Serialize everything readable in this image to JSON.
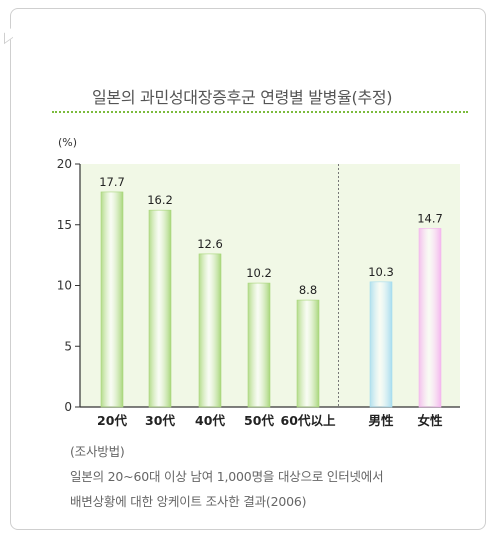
{
  "title": "일본의 과민성대장증후군 연령별 발병율(추정)",
  "chart_data": {
    "type": "bar",
    "ylabel": "(%)",
    "ylim": [
      0,
      20
    ],
    "yticks": [
      0,
      5,
      10,
      15,
      20
    ],
    "grid": false,
    "categories": [
      "20代",
      "30代",
      "40代",
      "50代",
      "60代以上",
      "男性",
      "女性"
    ],
    "values": [
      17.7,
      16.2,
      12.6,
      10.2,
      8.8,
      10.3,
      14.7
    ],
    "value_labels": [
      "17.7",
      "16.2",
      "12.6",
      "10.2",
      "8.8",
      "10.3",
      "14.7"
    ],
    "groups": [
      {
        "members": [
          0,
          1,
          2,
          3,
          4
        ],
        "color": "#a8d67a"
      },
      {
        "members": [
          5
        ],
        "color": "#a6dcef"
      },
      {
        "members": [
          6
        ],
        "color": "#f4b6ee"
      }
    ],
    "plot_background": "#f1f8e6",
    "separator": "dotted line between 60代以上 and 男性"
  },
  "notes": [
    "(조사방법)",
    "일본의 20~60대 이상 남여 1,000명을 대상으로 인터넷에서",
    "배변상황에 대한 앙케이트 조사한 결과(2006)"
  ]
}
